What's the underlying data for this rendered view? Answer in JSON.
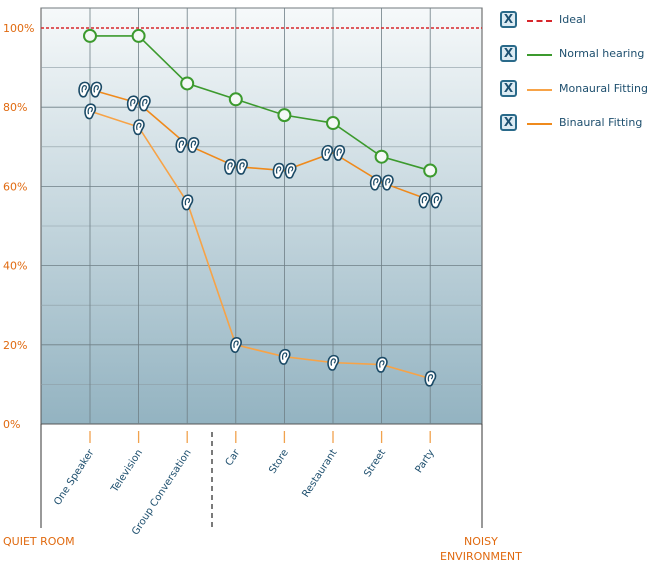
{
  "chart_data": {
    "type": "line",
    "categories": [
      "One Speaker",
      "Television",
      "Group Conversation",
      "Car",
      "Store",
      "Restaurant",
      "Street",
      "Party"
    ],
    "ylim": [
      0,
      100
    ],
    "y_ticks": [
      0,
      20,
      40,
      60,
      80,
      100
    ],
    "y_tick_labels": [
      "0%",
      "20%",
      "40%",
      "60%",
      "80%",
      "100%"
    ],
    "grid": true,
    "legend_position": "right",
    "ideal": {
      "name": "Ideal",
      "value": 100,
      "color": "#d7262b"
    },
    "series": [
      {
        "name": "Normal hearing",
        "color": "#3c9a2e",
        "marker": "circle",
        "values": [
          98,
          98,
          86,
          82,
          78,
          76,
          67.5,
          64
        ]
      },
      {
        "name": "Monaural Fitting",
        "color": "#f7a347",
        "marker": "ear",
        "values": [
          79,
          75,
          56,
          20,
          17,
          15.5,
          15,
          11.5
        ]
      },
      {
        "name": "Binaural Fitting",
        "color": "#ef8a1c",
        "marker": "ears",
        "values": [
          84.5,
          81,
          70.5,
          65,
          64,
          68.5,
          61,
          56.5
        ]
      }
    ]
  },
  "legend": {
    "check_symbol": "X",
    "items": [
      {
        "label": "Ideal",
        "color": "#d7262b",
        "style": "dashed"
      },
      {
        "label": "Normal hearing",
        "color": "#3c9a2e",
        "style": "solid"
      },
      {
        "label": "Monaural Fitting",
        "color": "#f7a347",
        "style": "solid"
      },
      {
        "label": "Binaural Fitting",
        "color": "#ef8a1c",
        "style": "solid"
      }
    ]
  },
  "environment": {
    "left_label": "QUIET ROOM",
    "right_label_line1": "NOISY",
    "right_label_line2": "ENVIRONMENT"
  }
}
